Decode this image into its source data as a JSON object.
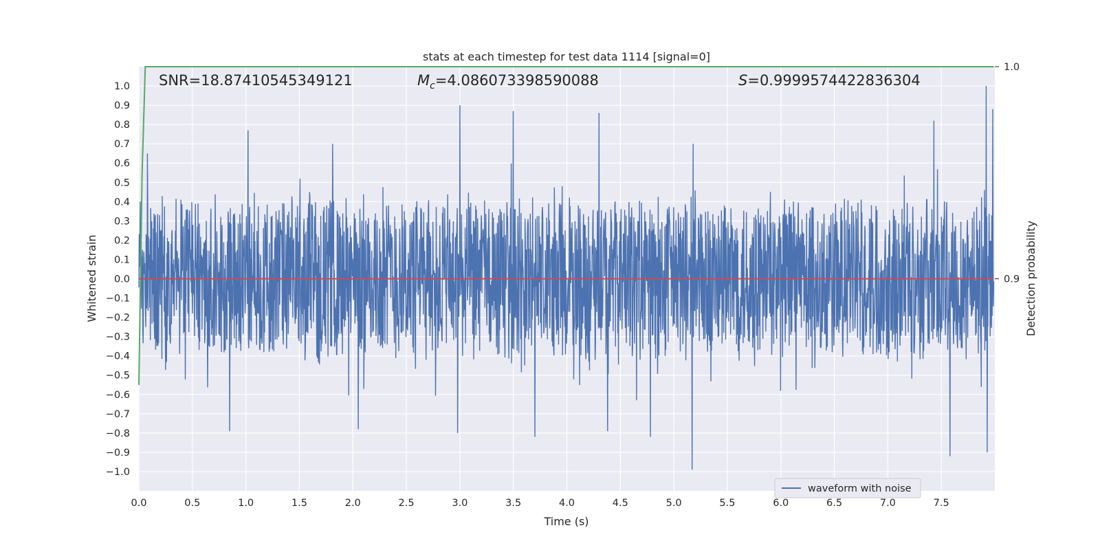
{
  "chart_data": {
    "type": "line",
    "title": "stats at each timestep for test data 1114 [signal=0]",
    "xlabel": "Time (s)",
    "ylabel": "Whitened strain",
    "y2label": "Detection probability",
    "xlim": [
      0.0,
      8.0
    ],
    "ylim": [
      -1.1,
      1.1
    ],
    "y2lim": [
      0.8,
      1.0
    ],
    "x_ticks": [
      "0.0",
      "0.5",
      "1.0",
      "1.5",
      "2.0",
      "2.5",
      "3.0",
      "3.5",
      "4.0",
      "4.5",
      "5.0",
      "5.5",
      "6.0",
      "6.5",
      "7.0",
      "7.5"
    ],
    "y_ticks": [
      "1.0",
      "0.9",
      "0.8",
      "0.7",
      "0.6",
      "0.5",
      "0.4",
      "0.3",
      "0.2",
      "0.1",
      "0.0",
      "−0.1",
      "−0.2",
      "−0.3",
      "−0.4",
      "−0.5",
      "−0.6",
      "−0.7",
      "−0.8",
      "−0.9",
      "−1.0"
    ],
    "y2_ticks": [
      "1.0",
      "0.9"
    ],
    "grid": true,
    "legend_position": "lower-right",
    "annotations": {
      "snr": "SNR=18.87410545349121",
      "mc_symbol": "M",
      "mc_subscript": "c",
      "mc_value": "=4.086073398590088",
      "s_symbol": "S",
      "s_value": "=0.9999574422836304"
    },
    "series": [
      {
        "name": "waveform with noise",
        "color": "#4c72b0",
        "axis": "left",
        "kind": "noise",
        "x_range": [
          0.0,
          7.99
        ],
        "typical_range": [
          -0.45,
          0.45
        ],
        "peaks": [
          [
            0.08,
            0.65
          ],
          [
            0.85,
            -0.79
          ],
          [
            1.02,
            0.77
          ],
          [
            1.81,
            0.7
          ],
          [
            2.05,
            -0.78
          ],
          [
            2.98,
            -0.8
          ],
          [
            3.0,
            0.9
          ],
          [
            3.5,
            0.87
          ],
          [
            3.7,
            -0.82
          ],
          [
            4.3,
            0.86
          ],
          [
            4.38,
            -0.79
          ],
          [
            4.78,
            -0.82
          ],
          [
            5.17,
            -0.99
          ],
          [
            5.18,
            0.7
          ],
          [
            7.43,
            0.82
          ],
          [
            7.58,
            -0.92
          ],
          [
            7.92,
            1.0
          ],
          [
            7.93,
            -0.9
          ],
          [
            7.98,
            0.88
          ]
        ]
      },
      {
        "name": "",
        "color": "#55a868",
        "axis": "right",
        "x": [
          0.0,
          0.03,
          0.06,
          0.1,
          0.2,
          7.99
        ],
        "y": [
          0.85,
          0.95,
          1.0,
          1.0,
          1.0,
          1.0
        ]
      },
      {
        "name": "",
        "color": "#c44e52",
        "axis": "right",
        "x": [
          0.0,
          7.99
        ],
        "y": [
          0.9,
          0.9
        ]
      }
    ]
  },
  "colors": {
    "axes_background": "#eaeaf2",
    "grid": "#ffffff",
    "text": "#262626"
  }
}
